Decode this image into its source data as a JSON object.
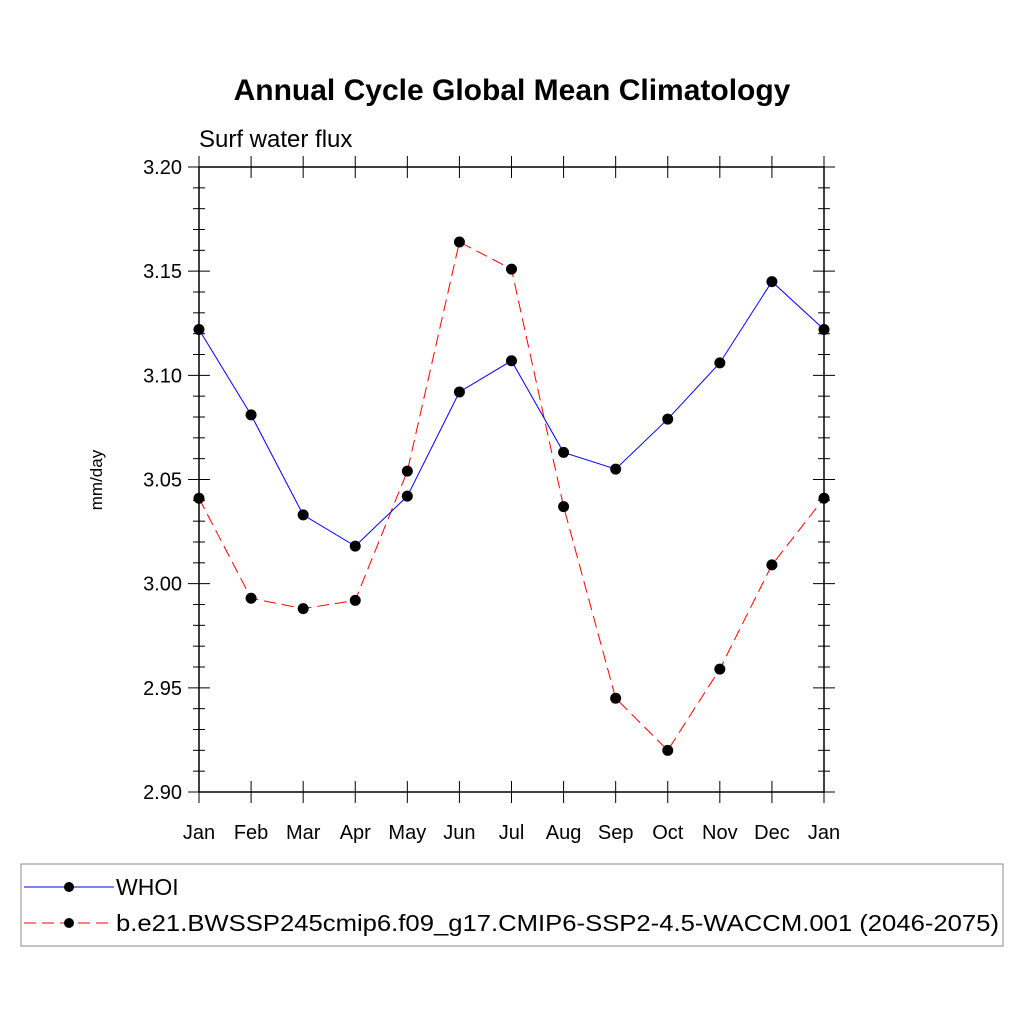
{
  "chart_data": {
    "type": "line",
    "title": "Annual Cycle Global Mean Climatology",
    "subtitle": "Surf water flux",
    "ylabel": "mm/day",
    "categories": [
      "Jan",
      "Feb",
      "Mar",
      "Apr",
      "May",
      "Jun",
      "Jul",
      "Aug",
      "Sep",
      "Oct",
      "Nov",
      "Dec",
      "Jan"
    ],
    "ylim": [
      2.9,
      3.2
    ],
    "yticks": [
      "2.90",
      "2.95",
      "3.00",
      "3.05",
      "3.10",
      "3.15",
      "3.20"
    ],
    "ytick_values": [
      2.9,
      2.95,
      3.0,
      3.05,
      3.1,
      3.15,
      3.2
    ],
    "grid": false,
    "legend_position": "bottom",
    "series": [
      {
        "name": "WHOI",
        "color": "#0000ff",
        "line_style": "solid",
        "marker": "filled-circle",
        "values": [
          3.122,
          3.081,
          3.033,
          3.018,
          3.042,
          3.092,
          3.107,
          3.063,
          3.055,
          3.079,
          3.106,
          3.145,
          3.122
        ]
      },
      {
        "name": "b.e21.BWSSP245cmip6.f09_g17.CMIP6-SSP2-4.5-WACCM.001 (2046-2075)",
        "color": "#ff0000",
        "line_style": "dashed",
        "marker": "filled-circle",
        "values": [
          3.041,
          2.993,
          2.988,
          2.992,
          3.054,
          3.164,
          3.151,
          3.037,
          2.945,
          2.92,
          2.959,
          3.009,
          3.041
        ]
      }
    ]
  }
}
